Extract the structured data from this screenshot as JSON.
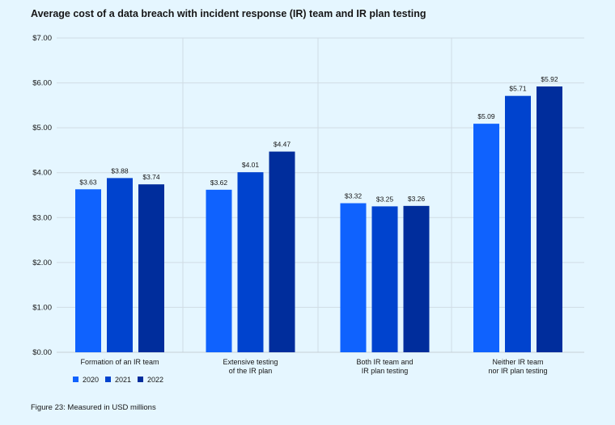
{
  "chart_data": {
    "type": "bar",
    "title": "Average cost of a data breach with incident response (IR) team and IR plan testing",
    "footnote": "Figure 23: Measured in USD millions",
    "categories": [
      [
        "Formation of an IR team"
      ],
      [
        "Extensive testing",
        "of the IR plan"
      ],
      [
        "Both IR team and",
        "IR plan testing"
      ],
      [
        "Neither IR team",
        "nor IR plan testing"
      ]
    ],
    "series": [
      {
        "name": "2020",
        "color": "#0f62fe",
        "values": [
          3.63,
          3.62,
          3.32,
          5.09
        ],
        "labels": [
          "$3.63",
          "$3.62",
          "$3.32",
          "$5.09"
        ]
      },
      {
        "name": "2021",
        "color": "#0043ce",
        "values": [
          3.88,
          4.01,
          3.25,
          5.71
        ],
        "labels": [
          "$3.88",
          "$4.01",
          "$3.25",
          "$5.71"
        ]
      },
      {
        "name": "2022",
        "color": "#002d9c",
        "values": [
          3.74,
          4.47,
          3.26,
          5.92
        ],
        "labels": [
          "$3.74",
          "$4.47",
          "$3.26",
          "$5.92"
        ]
      }
    ],
    "yticks": [
      0,
      1,
      2,
      3,
      4,
      5,
      6,
      7
    ],
    "ytick_labels": [
      "$0.00",
      "$1.00",
      "$2.00",
      "$3.00",
      "$4.00",
      "$5.00",
      "$6.00",
      "$7.00"
    ],
    "ylim": [
      0,
      7
    ],
    "grid": true,
    "legend_position": "bottom-left"
  }
}
